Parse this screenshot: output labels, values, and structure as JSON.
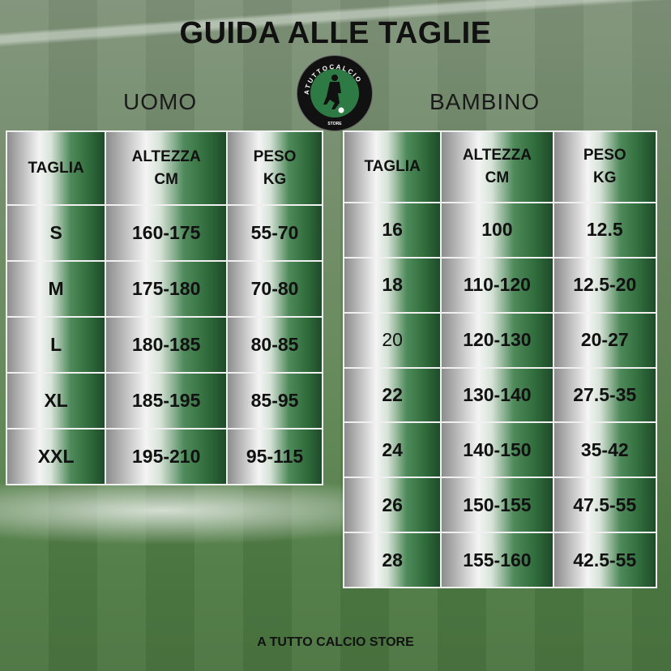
{
  "title": "GUIDA ALLE TAGLIE",
  "logo": {
    "text_top": "ATUTTOCALCIO",
    "text_bottom": "STORE"
  },
  "uomo": {
    "label": "UOMO",
    "headers": [
      [
        "TAGLIA"
      ],
      [
        "ALTEZZA",
        "CM"
      ],
      [
        "PESO",
        "KG"
      ]
    ],
    "rows": [
      [
        "S",
        "160-175",
        "55-70"
      ],
      [
        "M",
        "175-180",
        "70-80"
      ],
      [
        "L",
        "180-185",
        "80-85"
      ],
      [
        "XL",
        "185-195",
        "85-95"
      ],
      [
        "XXL",
        "195-210",
        "95-115"
      ]
    ]
  },
  "bambino": {
    "label": "BAMBINO",
    "headers": [
      [
        "TAGLIA"
      ],
      [
        "ALTEZZA",
        "CM"
      ],
      [
        "PESO",
        "KG"
      ]
    ],
    "rows": [
      [
        "16",
        "100",
        "12.5"
      ],
      [
        "18",
        "110-120",
        "12.5-20"
      ],
      [
        "20",
        "120-130",
        "20-27"
      ],
      [
        "22",
        "130-140",
        "27.5-35"
      ],
      [
        "24",
        "140-150",
        "35-42"
      ],
      [
        "26",
        "150-155",
        "47.5-55"
      ],
      [
        "28",
        "155-160",
        "42.5-55"
      ]
    ]
  },
  "footer": "A TUTTO CALCIO STORE",
  "colors": {
    "green_dark": "#1f4a29",
    "green": "#4f8a5b",
    "logo_green": "#2e7a45"
  }
}
